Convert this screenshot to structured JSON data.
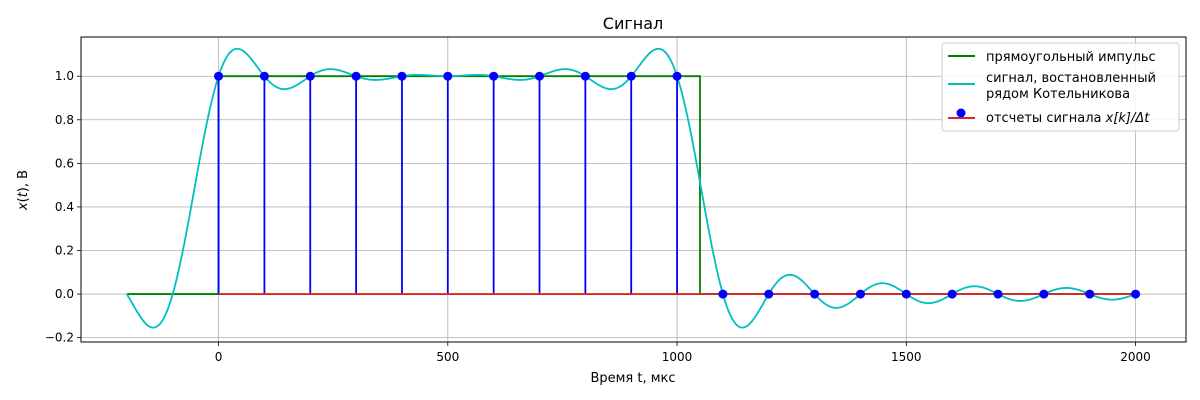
{
  "chart_data": {
    "type": "line",
    "title": "Сигнал",
    "xlabel": "Время t, мкс",
    "ylabel": "x(t), В",
    "xlim": [
      -300,
      2110
    ],
    "ylim": [
      -0.22,
      1.18
    ],
    "xticks": [
      0,
      500,
      1000,
      1500,
      2000
    ],
    "yticks": [
      -0.2,
      0.0,
      0.2,
      0.4,
      0.6,
      0.8,
      1.0
    ],
    "xtick_labels": [
      "0",
      "500",
      "1000",
      "1500",
      "2000"
    ],
    "ytick_labels": [
      "−0.2",
      "0.0",
      "0.2",
      "0.4",
      "0.6",
      "0.8",
      "1.0"
    ],
    "grid": true,
    "legend_position": "top-right",
    "series": [
      {
        "name": "прямоугольный импульс",
        "kind": "line",
        "color": "#008000",
        "x": [
          -200,
          0,
          0,
          1050,
          1050,
          2000
        ],
        "y": [
          0,
          0,
          1,
          1,
          0,
          0
        ]
      },
      {
        "name_lines": [
          "сигнал, востановленный",
          "рядом Котельникова"
        ],
        "kind": "sinc_reconstruction",
        "color": "#00bfbf",
        "sample_period": 100,
        "x_range": [
          -200,
          2000
        ]
      },
      {
        "name_prefix": "отсчеты сигнала ",
        "name_math": "x[k]/Δt",
        "kind": "stem",
        "marker_color": "#0000ff",
        "stem_color": "#0000ff",
        "baseline_color": "#d62728",
        "x": [
          0,
          100,
          200,
          300,
          400,
          500,
          600,
          700,
          800,
          900,
          1000,
          1100,
          1200,
          1300,
          1400,
          1500,
          1600,
          1700,
          1800,
          1900,
          2000
        ],
        "y": [
          1,
          1,
          1,
          1,
          1,
          1,
          1,
          1,
          1,
          1,
          1,
          0,
          0,
          0,
          0,
          0,
          0,
          0,
          0,
          0,
          0
        ]
      }
    ]
  }
}
